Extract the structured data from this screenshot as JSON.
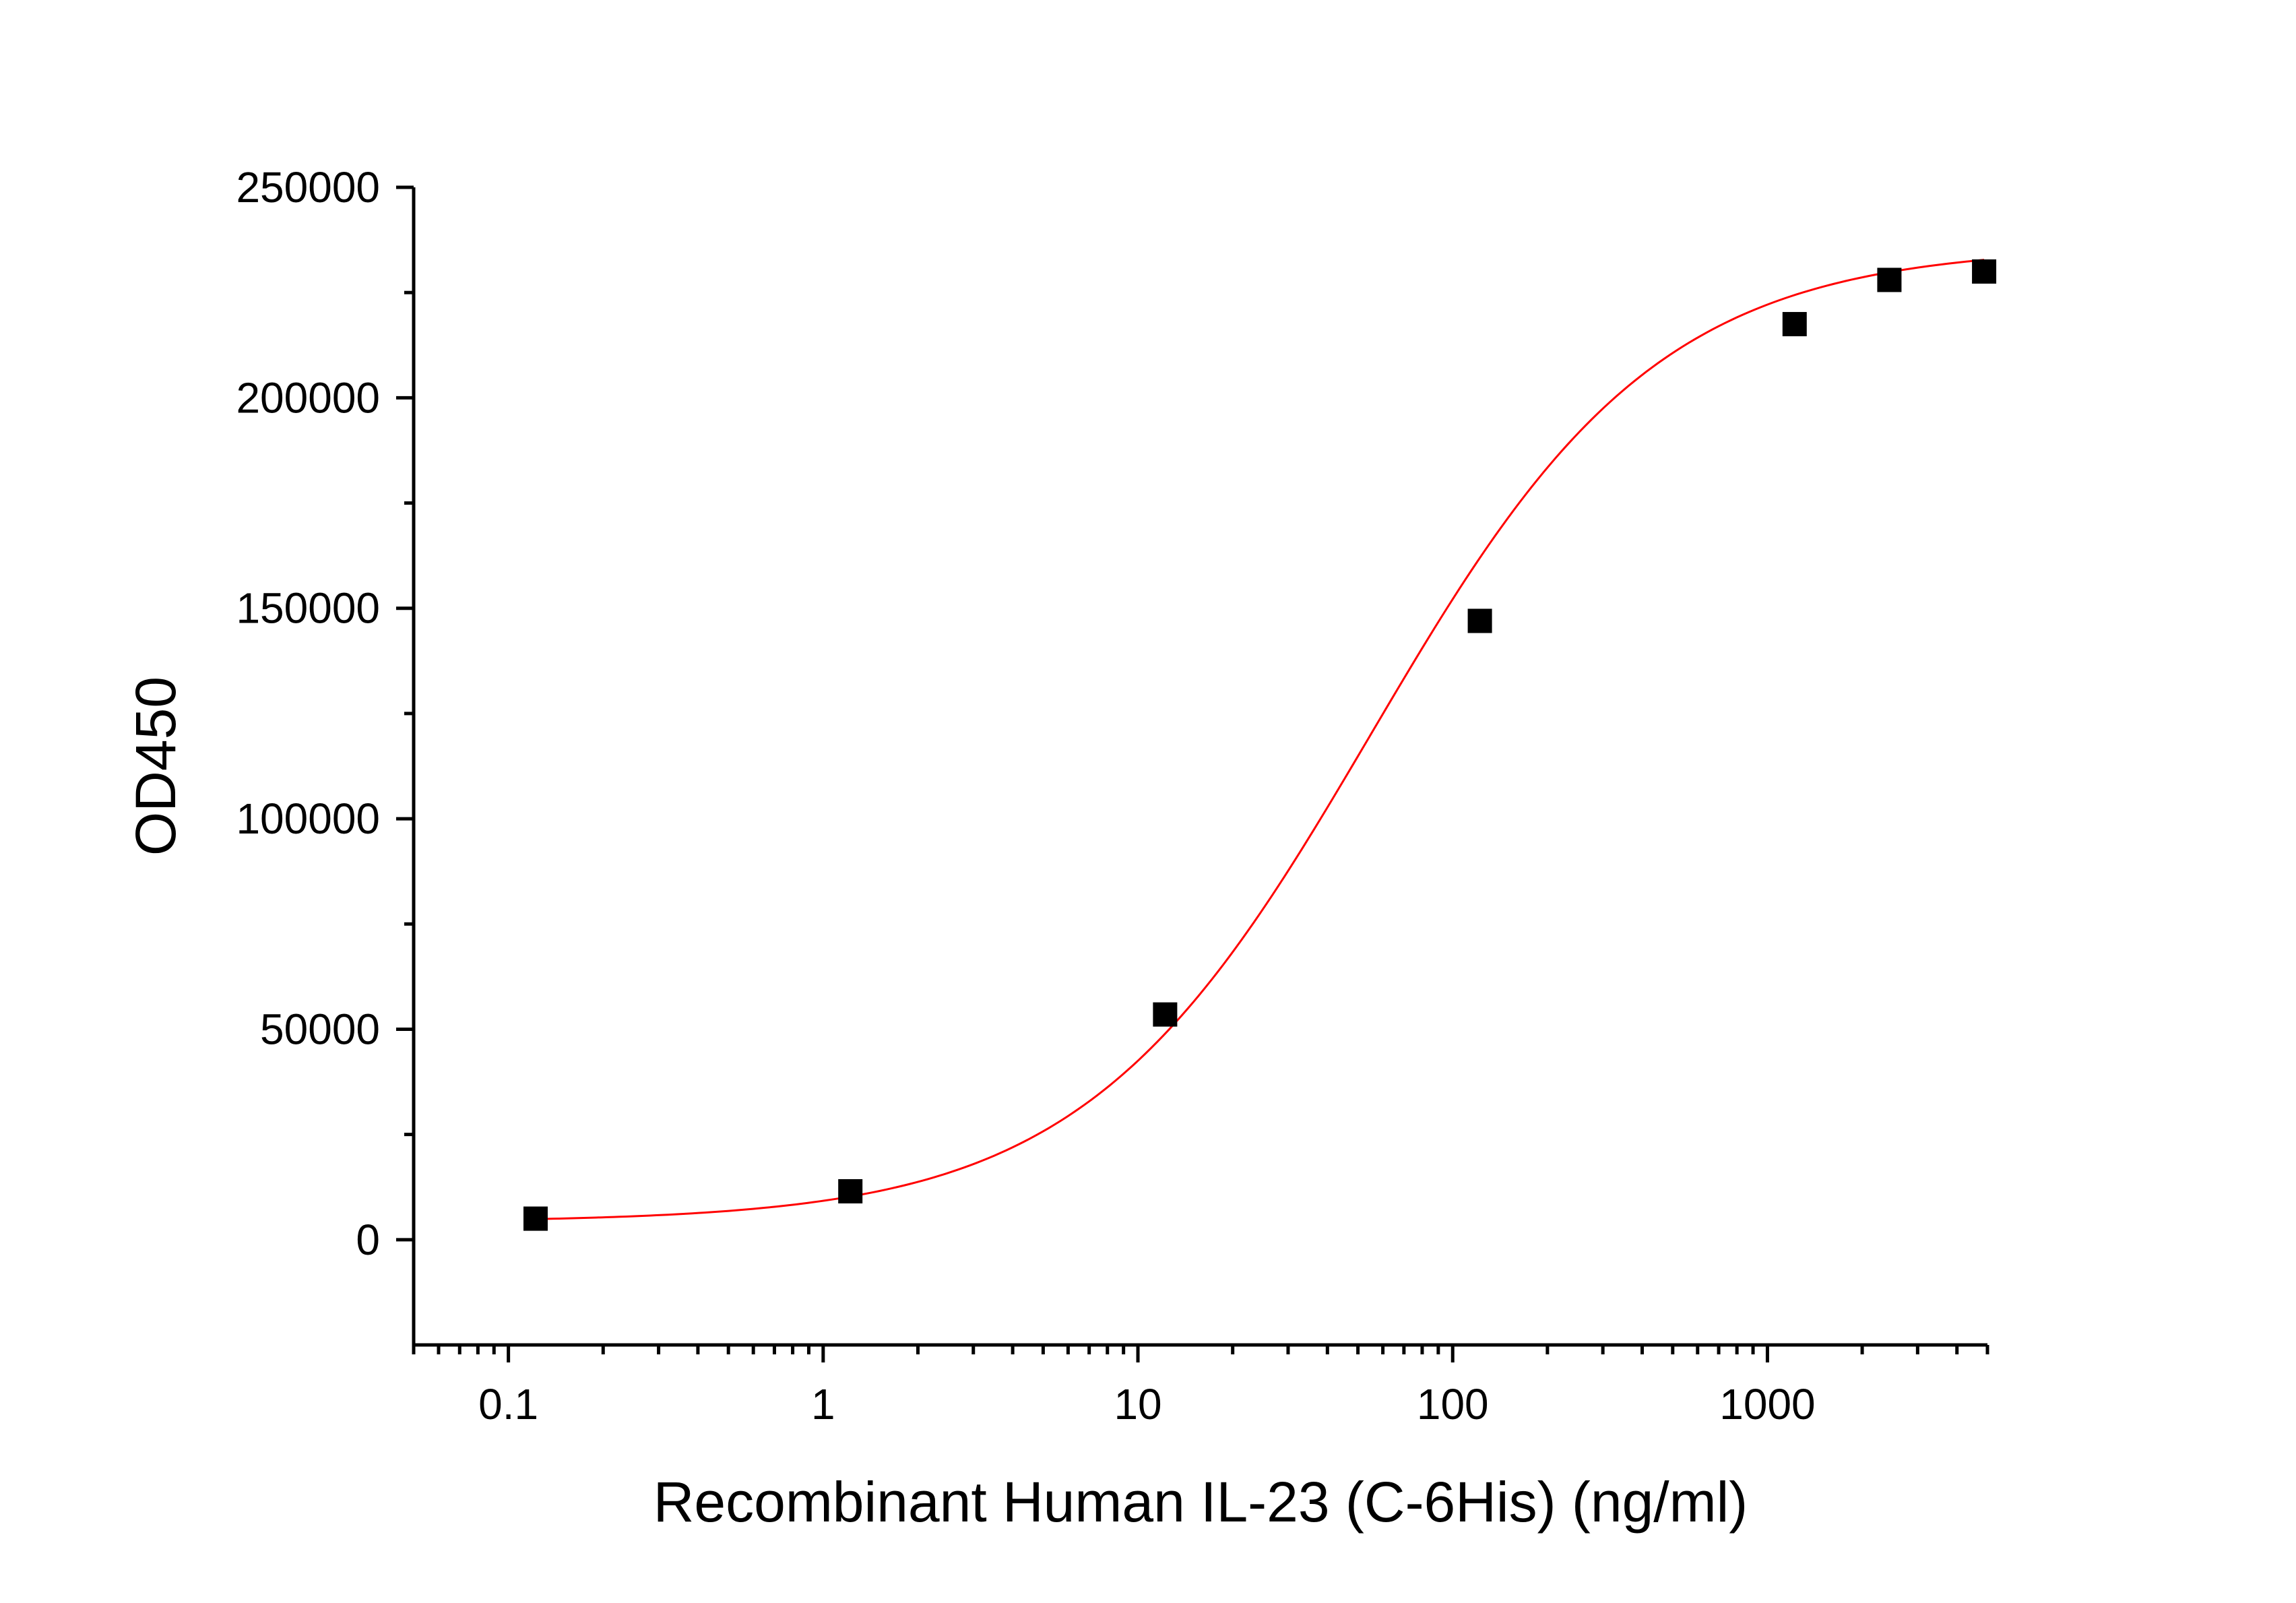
{
  "chart_data": {
    "type": "scatter",
    "title": "",
    "xlabel": "Recombinant Human IL-23 (C-6His) (ng/ml)",
    "ylabel": "OD450",
    "x_scale": "log",
    "xlim": [
      0.05,
      5000
    ],
    "ylim": [
      -25000,
      250000
    ],
    "grid": false,
    "legend": "none",
    "x_ticks": [
      {
        "value": 0.1,
        "label": "0.1"
      },
      {
        "value": 1,
        "label": "1"
      },
      {
        "value": 10,
        "label": "10"
      },
      {
        "value": 100,
        "label": "100"
      },
      {
        "value": 1000,
        "label": "1000"
      }
    ],
    "y_ticks": [
      {
        "value": 0,
        "label": "0"
      },
      {
        "value": 50000,
        "label": "50000"
      },
      {
        "value": 100000,
        "label": "100000"
      },
      {
        "value": 150000,
        "label": "150000"
      },
      {
        "value": 200000,
        "label": "200000"
      },
      {
        "value": 250000,
        "label": "250000"
      }
    ],
    "y_minor_step": 25000,
    "series": [
      {
        "marker": "square",
        "color": "#000000",
        "points": [
          {
            "x": 0.122,
            "y": 5000
          },
          {
            "x": 1.22,
            "y": 11500
          },
          {
            "x": 12.2,
            "y": 53500
          },
          {
            "x": 122,
            "y": 147000
          },
          {
            "x": 1220,
            "y": 217500
          },
          {
            "x": 2440,
            "y": 228000
          },
          {
            "x": 4880,
            "y": 230000
          }
        ]
      }
    ],
    "fit_curve": {
      "model": "4PL",
      "color": "#ff0000",
      "bottom": 4200,
      "top": 236000,
      "ec50": 55,
      "hill": 0.95
    }
  }
}
